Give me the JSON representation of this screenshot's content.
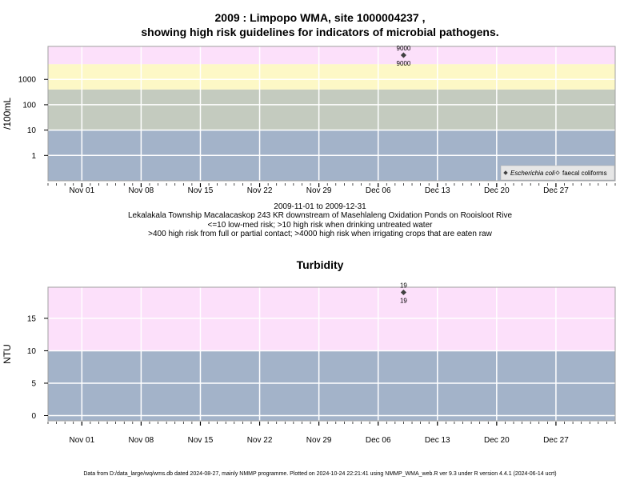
{
  "main_title_line1": "2009 : Limpopo WMA, site 1000004237 ,",
  "main_title_line2": "showing high risk guidelines for indicators of microbial pathogens.",
  "subtitle": {
    "date_range": "2009-11-01 to 2009-12-31",
    "site_description": "Lekalakala Township Macalacaskop 243 KR downstream of Masehlaleng Oxidation Ponds on Rooisloot Rive",
    "guideline_1": "<=10 low-med risk; >10 high risk when drinking untreated water",
    "guideline_2": ">400 high risk from full or partial contact; >4000 high risk when irrigating crops that are eaten raw"
  },
  "footer": "Data from D:/data_large/wq/wms.db dated 2024-08-27, mainly NMMP programme. Plotted on 2024-10-24 22:21:41 using NMMP_WMA_web.R ver 9.3 under R version 4.4.1 (2024-06-14 ucrt)",
  "colors": {
    "band_blue": "#a3b3c9",
    "band_green": "#c4cbbf",
    "band_yellow": "#fdf8c6",
    "band_pink": "#fce0fa",
    "grid": "#ffffff",
    "frame": "#a0a0a0",
    "marker": "#404040"
  },
  "chart_data": [
    {
      "type": "scatter",
      "ylabel": "/100mL",
      "y_scale": "log",
      "yticks": [
        1,
        10,
        100,
        1000
      ],
      "ytick_labels": [
        "1",
        "10",
        "100",
        "1000"
      ],
      "ylim": [
        0.1,
        20000
      ],
      "xlim": [
        "2009-10-28",
        "2010-01-03"
      ],
      "xticks": [
        "2009-11-01",
        "2009-11-08",
        "2009-11-15",
        "2009-11-22",
        "2009-11-29",
        "2009-12-06",
        "2009-12-13",
        "2009-12-20",
        "2009-12-27"
      ],
      "xtick_labels": [
        "Nov 01",
        "Nov 08",
        "Nov 15",
        "Nov 22",
        "Nov 29",
        "Dec 06",
        "Dec 13",
        "Dec 20",
        "Dec 27"
      ],
      "grid": true,
      "bands": [
        {
          "from": 0.1,
          "to": 10,
          "color": "#a3b3c9"
        },
        {
          "from": 10,
          "to": 400,
          "color": "#c4cbbf"
        },
        {
          "from": 400,
          "to": 4000,
          "color": "#fdf8c6"
        },
        {
          "from": 4000,
          "to": 20000,
          "color": "#fce0fa"
        }
      ],
      "series": [
        {
          "name": "Escherichia coli",
          "marker": "filled-diamond",
          "points": [
            {
              "x": "2009-12-09",
              "y": 9000,
              "label_above": "9000",
              "label_below": "9000"
            }
          ]
        },
        {
          "name": "faecal coliforms",
          "marker": "open-diamond",
          "points": []
        }
      ],
      "legend_position": "bottom-right"
    },
    {
      "type": "scatter",
      "title": "Turbidity",
      "ylabel": "NTU",
      "y_scale": "linear",
      "yticks": [
        0,
        5,
        10,
        15
      ],
      "ytick_labels": [
        "0",
        "5",
        "10",
        "15"
      ],
      "ylim": [
        -0.8,
        19.8
      ],
      "xlim": [
        "2009-10-28",
        "2010-01-03"
      ],
      "xticks": [
        "2009-11-01",
        "2009-11-08",
        "2009-11-15",
        "2009-11-22",
        "2009-11-29",
        "2009-12-06",
        "2009-12-13",
        "2009-12-20",
        "2009-12-27"
      ],
      "xtick_labels": [
        "Nov 01",
        "Nov 08",
        "Nov 15",
        "Nov 22",
        "Nov 29",
        "Dec 06",
        "Dec 13",
        "Dec 20",
        "Dec 27"
      ],
      "grid": true,
      "bands": [
        {
          "from": -0.8,
          "to": 10,
          "color": "#a3b3c9"
        },
        {
          "from": 10,
          "to": 19.8,
          "color": "#fce0fa"
        }
      ],
      "series": [
        {
          "marker": "filled-diamond",
          "points": [
            {
              "x": "2009-12-09",
              "y": 19,
              "label_above": "19",
              "label_below": "19"
            }
          ]
        }
      ]
    }
  ]
}
